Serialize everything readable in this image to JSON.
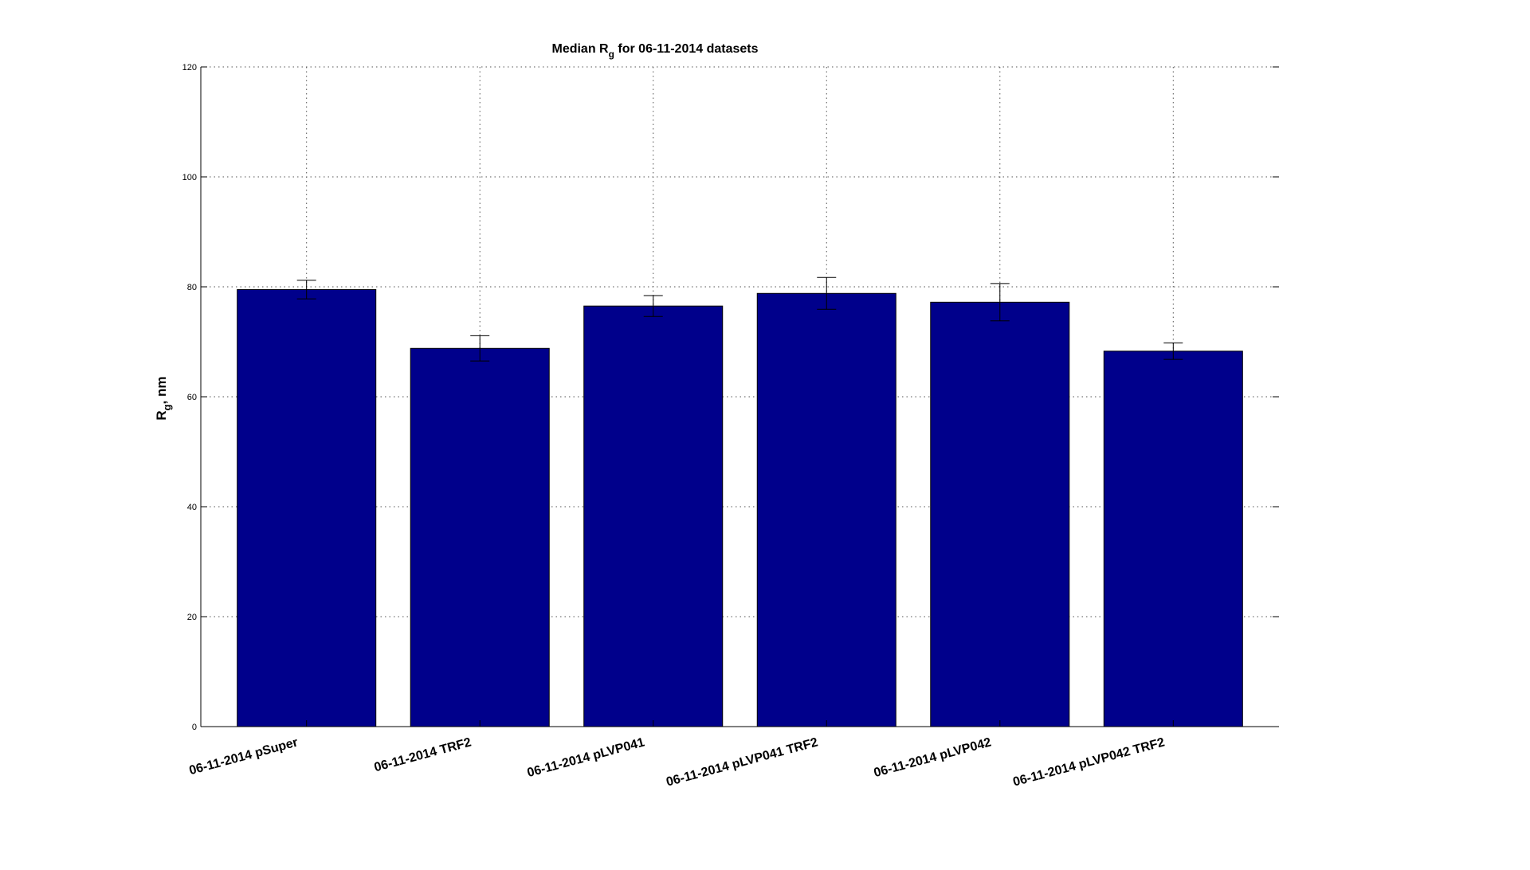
{
  "chart_data": {
    "type": "bar",
    "title": "Median R_g for 06-11-2014 datasets",
    "title_parts": {
      "main": "Median R",
      "sub": "g",
      "rest": " for 06-11-2014 datasets"
    },
    "xlabel": "",
    "ylabel": "R_g, nm",
    "ylabel_parts": {
      "main": "R",
      "sub": "g",
      "rest": ", nm"
    },
    "ylim": [
      0,
      120
    ],
    "yticks": [
      0,
      20,
      40,
      60,
      80,
      100,
      120
    ],
    "grid": true,
    "categories": [
      "06-11-2014 pSuper",
      "06-11-2014 TRF2",
      "06-11-2014 pLVP041",
      "06-11-2014 pLVP041 TRF2",
      "06-11-2014 pLVP042",
      "06-11-2014 pLVP042 TRF2"
    ],
    "values": [
      79.5,
      68.8,
      76.5,
      78.8,
      77.2,
      68.3
    ],
    "error": [
      1.7,
      2.3,
      1.9,
      2.9,
      3.4,
      1.5
    ],
    "bar_color": "#00008b"
  }
}
